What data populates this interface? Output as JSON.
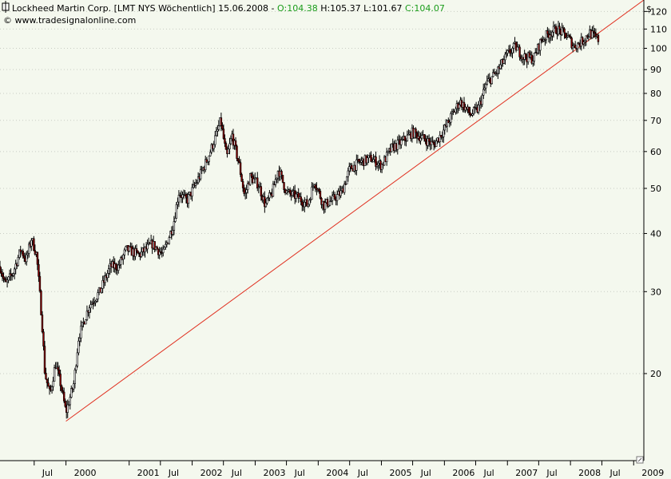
{
  "header": {
    "title": "Lockheed Martin Corp. [LMT NYS  Wöchentlich] 15.06.2008 - ",
    "open": "O:104.38",
    "high": "H:105.37",
    "low": "L:101.67",
    "close": "C:104.07",
    "watermark": "© www.tradesignalonline.com",
    "currency": "$"
  },
  "colors": {
    "background": "#f4f8ee",
    "up_candle": "#ffffff",
    "down_candle": "#8b0000",
    "outline": "#000000",
    "trendline": "#e03020",
    "open_text": "#1a9c1a",
    "close_text": "#1a9c1a"
  },
  "chart_data": {
    "type": "candlestick",
    "scale": "log",
    "ylim": [
      13,
      127
    ],
    "ytick_labels": [
      "20",
      "30",
      "40",
      "50",
      "60",
      "70",
      "80",
      "90",
      "100",
      "110",
      "120"
    ],
    "ytick_values": [
      20,
      30,
      40,
      50,
      60,
      70,
      80,
      90,
      100,
      110,
      120
    ],
    "xtick_labels": [
      "Jul",
      "2000",
      "2001",
      "Jul",
      "2002",
      "Jul",
      "2003",
      "Jul",
      "2004",
      "Jul",
      "2005",
      "Jul",
      "2006",
      "Jul",
      "2007",
      "Jul",
      "2008",
      "Jul",
      "2009"
    ],
    "xtick_dates": [
      "1999-07-01",
      "2000-01-01",
      "2001-01-01",
      "2001-07-01",
      "2002-01-01",
      "2002-07-01",
      "2003-01-01",
      "2003-07-01",
      "2004-01-01",
      "2004-07-01",
      "2005-01-01",
      "2005-07-01",
      "2006-01-01",
      "2006-07-01",
      "2007-01-01",
      "2007-07-01",
      "2008-01-01",
      "2008-07-01",
      "2009-01-01"
    ],
    "xrange": [
      "1998-12-15",
      "2009-03-01"
    ],
    "price_path": [
      [
        "1998-12-15",
        34
      ],
      [
        "1999-01-15",
        31
      ],
      [
        "1999-03-01",
        33
      ],
      [
        "1999-04-15",
        37
      ],
      [
        "1999-05-15",
        35
      ],
      [
        "1999-06-15",
        39
      ],
      [
        "1999-07-15",
        36
      ],
      [
        "1999-08-15",
        26
      ],
      [
        "1999-09-01",
        20
      ],
      [
        "1999-10-01",
        18
      ],
      [
        "1999-11-01",
        21
      ],
      [
        "1999-12-01",
        19
      ],
      [
        "2000-01-01",
        16.5
      ],
      [
        "2000-02-15",
        19
      ],
      [
        "2000-03-15",
        24
      ],
      [
        "2000-05-15",
        28
      ],
      [
        "2000-07-15",
        30
      ],
      [
        "2000-09-15",
        34
      ],
      [
        "2000-11-01",
        34
      ],
      [
        "2000-12-15",
        37
      ],
      [
        "2001-03-01",
        36
      ],
      [
        "2001-05-15",
        38
      ],
      [
        "2001-07-15",
        36
      ],
      [
        "2001-09-15",
        42
      ],
      [
        "2001-10-15",
        49
      ],
      [
        "2001-12-01",
        47
      ],
      [
        "2002-02-01",
        52
      ],
      [
        "2002-04-01",
        58
      ],
      [
        "2002-05-20",
        65
      ],
      [
        "2002-06-15",
        70
      ],
      [
        "2002-07-20",
        58
      ],
      [
        "2002-08-20",
        65
      ],
      [
        "2002-10-01",
        56
      ],
      [
        "2002-11-01",
        48
      ],
      [
        "2002-12-01",
        53
      ],
      [
        "2003-01-20",
        51
      ],
      [
        "2003-03-01",
        46
      ],
      [
        "2003-04-10",
        49
      ],
      [
        "2003-05-15",
        55
      ],
      [
        "2003-07-01",
        49
      ],
      [
        "2003-09-01",
        48
      ],
      [
        "2003-11-01",
        46
      ],
      [
        "2003-12-10",
        52
      ],
      [
        "2004-02-01",
        46
      ],
      [
        "2004-03-15",
        47
      ],
      [
        "2004-05-15",
        49
      ],
      [
        "2004-07-01",
        55
      ],
      [
        "2004-09-01",
        57
      ],
      [
        "2004-11-01",
        58
      ],
      [
        "2005-01-01",
        56
      ],
      [
        "2005-03-01",
        61
      ],
      [
        "2005-05-01",
        63
      ],
      [
        "2005-07-01",
        66
      ],
      [
        "2005-09-01",
        64
      ],
      [
        "2005-11-01",
        62
      ],
      [
        "2006-01-01",
        67
      ],
      [
        "2006-02-15",
        72
      ],
      [
        "2006-04-01",
        77
      ],
      [
        "2006-06-01",
        72
      ],
      [
        "2006-07-15",
        74
      ],
      [
        "2006-09-01",
        84
      ],
      [
        "2006-11-01",
        89
      ],
      [
        "2007-01-01",
        97
      ],
      [
        "2007-02-15",
        101
      ],
      [
        "2007-04-01",
        96
      ],
      [
        "2007-06-01",
        95
      ],
      [
        "2007-07-15",
        104
      ],
      [
        "2007-09-01",
        108
      ],
      [
        "2007-10-15",
        110
      ],
      [
        "2007-12-15",
        106
      ],
      [
        "2008-01-20",
        101
      ],
      [
        "2008-03-01",
        103
      ],
      [
        "2008-04-20",
        108
      ],
      [
        "2008-06-15",
        104
      ]
    ],
    "trendline": {
      "from": [
        "2000-01-01",
        15.8
      ],
      "to": [
        "2009-03-01",
        127
      ]
    }
  }
}
